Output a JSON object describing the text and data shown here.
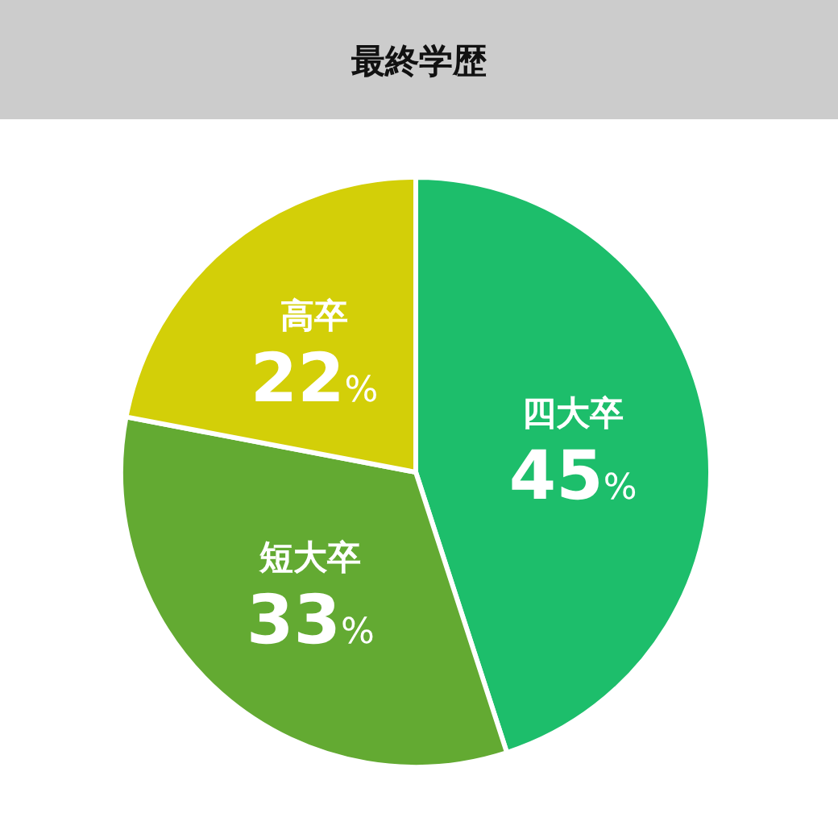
{
  "chart_data": {
    "type": "pie",
    "title": "最終学歴",
    "categories": [
      "四大卒",
      "短大卒",
      "高卒"
    ],
    "values": [
      45,
      33,
      22
    ],
    "colors": [
      "#1dbe6b",
      "#63aa32",
      "#d3cf08"
    ],
    "value_labels": [
      "45%",
      "33%",
      "22%"
    ]
  }
}
